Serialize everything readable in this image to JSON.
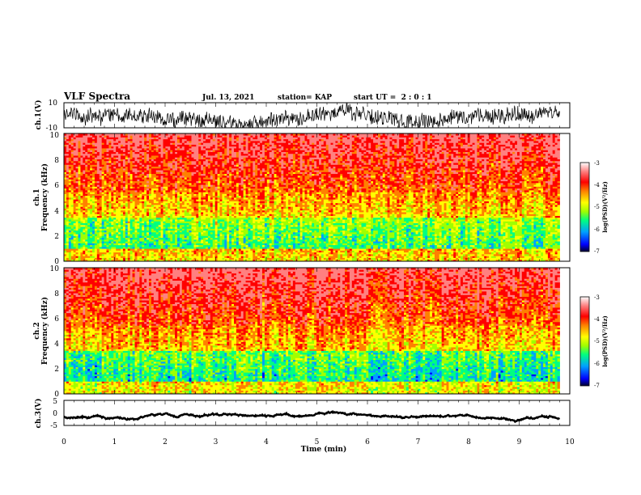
{
  "header": {
    "title": "VLF Spectra",
    "date": "Jul. 13, 2021",
    "station": "station= KAP",
    "start_time": "start UT =  2 : 0 : 1"
  },
  "chart_data": [
    {
      "type": "line",
      "id": "ch1_waveform",
      "ylabel": "ch.1(V)",
      "ylim": [
        -10,
        10
      ],
      "yticks": [
        "10",
        "-10"
      ],
      "x_range_min": [
        0,
        9.8
      ]
    },
    {
      "type": "heatmap",
      "id": "ch1_spectrogram",
      "ylabel_line1": "ch.1",
      "ylabel_line2": "Frequency (kHz)",
      "ylim": [
        0,
        10
      ],
      "yticks": [
        "0",
        "2",
        "4",
        "6",
        "8",
        "10"
      ],
      "x_range_min": [
        0,
        9.8
      ],
      "colorbar": {
        "label": "log(PSD)(V²/Hz)",
        "range": [
          -7,
          -3
        ],
        "ticks": [
          "-3",
          "-4",
          "-5",
          "-6",
          "-7"
        ],
        "colors": [
          "#000030",
          "#0000ff",
          "#00a0ff",
          "#00ff80",
          "#a0ff00",
          "#ffff00",
          "#ff8000",
          "#ff0000",
          "#ff8080",
          "#ffffff"
        ]
      }
    },
    {
      "type": "heatmap",
      "id": "ch2_spectrogram",
      "ylabel_line1": "ch.2",
      "ylabel_line2": "Frequency (kHz)",
      "ylim": [
        0,
        10
      ],
      "yticks": [
        "0",
        "2",
        "4",
        "6",
        "8",
        "10"
      ],
      "x_range_min": [
        0,
        9.8
      ],
      "colorbar": {
        "label": "log(PSD)(V²/Hz)",
        "range": [
          -7,
          -3
        ],
        "ticks": [
          "-3",
          "-4",
          "-5",
          "-6",
          "-7"
        ],
        "colors": [
          "#000030",
          "#0000ff",
          "#00a0ff",
          "#00ff80",
          "#a0ff00",
          "#ffff00",
          "#ff8000",
          "#ff0000",
          "#ff8080",
          "#ffffff"
        ]
      }
    },
    {
      "type": "line",
      "id": "ch3_waveform",
      "ylabel": "ch.3(V)",
      "ylim": [
        -5,
        5
      ],
      "yticks": [
        "5",
        "0",
        "-5"
      ],
      "x_range_min": [
        0,
        9.8
      ]
    }
  ],
  "xaxis": {
    "label": "Time (min)",
    "range": [
      0,
      10
    ],
    "ticks": [
      "0",
      "1",
      "2",
      "3",
      "4",
      "5",
      "6",
      "7",
      "8",
      "9",
      "10"
    ]
  }
}
